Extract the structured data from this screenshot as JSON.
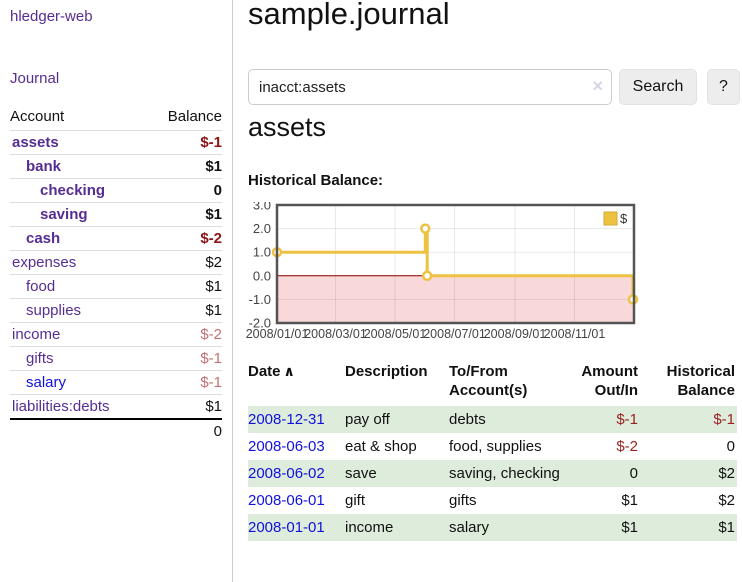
{
  "colors": {
    "accent_purple": "#552d93",
    "link_blue": "#1111dd",
    "negative_strong": "#8f1414",
    "negative_soft": "#c47070",
    "table_negative": "#9b2222",
    "row_stripe_green": "#deecdb",
    "chart_series_yellow": "#edc240",
    "chart_negative_region": "#f8d8d8",
    "chart_zero_line": "#8b0000"
  },
  "sidebar": {
    "app_title": "hledger-web",
    "nav_journal": "Journal",
    "accounts_table": {
      "header_account": "Account",
      "header_balance": "Balance",
      "rows": [
        {
          "name": "assets",
          "balance": "$-1",
          "indent": 1,
          "bold": true,
          "neg": true
        },
        {
          "name": "bank",
          "balance": "$1",
          "indent": 2,
          "bold": true,
          "neg": false
        },
        {
          "name": "checking",
          "balance": "0",
          "indent": 3,
          "bold": true,
          "neg": false
        },
        {
          "name": "saving",
          "balance": "$1",
          "indent": 3,
          "bold": true,
          "neg": false
        },
        {
          "name": "cash",
          "balance": "$-2",
          "indent": 2,
          "bold": true,
          "neg": true
        },
        {
          "name": "expenses",
          "balance": "$2",
          "indent": 1,
          "bold": false,
          "neg": false
        },
        {
          "name": "food",
          "balance": "$1",
          "indent": 2,
          "bold": false,
          "neg": false
        },
        {
          "name": "supplies",
          "balance": "$1",
          "indent": 2,
          "bold": false,
          "neg": false
        },
        {
          "name": "income",
          "balance": "$-2",
          "indent": 1,
          "bold": false,
          "neg": true
        },
        {
          "name": "gifts",
          "balance": "$-1",
          "indent": 2,
          "bold": false,
          "neg": true
        },
        {
          "name": "salary",
          "balance": "$-1",
          "indent": 2,
          "bold": false,
          "neg": true,
          "link_blue": true
        },
        {
          "name": "liabilities:debts",
          "balance": "$1",
          "indent": 1,
          "bold": false,
          "neg": false
        }
      ],
      "total": "0"
    }
  },
  "main": {
    "title": "sample.journal",
    "search": {
      "value": "inacct:assets",
      "clear_icon": "×",
      "button_label": "Search",
      "help_label": "?"
    },
    "account_heading": "assets",
    "chart_label": "Historical Balance:"
  },
  "chart_data": {
    "type": "line",
    "step": true,
    "title": "Historical Balance",
    "series": [
      {
        "name": "$",
        "color": "#edc240",
        "points": [
          [
            "2008-01-01",
            1
          ],
          [
            "2008-06-01",
            2
          ],
          [
            "2008-06-03",
            0
          ],
          [
            "2008-12-31",
            -1
          ]
        ]
      }
    ],
    "x_range": [
      "2008-01-01",
      "2009-01-01"
    ],
    "x_ticks": [
      {
        "date": "2008-01-01",
        "label": "2008/01/01"
      },
      {
        "date": "2008-03-01",
        "label": "2008/03/01"
      },
      {
        "date": "2008-05-01",
        "label": "2008/05/01"
      },
      {
        "date": "2008-07-01",
        "label": "2008/07/01"
      },
      {
        "date": "2008-09-01",
        "label": "2008/09/01"
      },
      {
        "date": "2008-11-01",
        "label": "2008/11/01"
      }
    ],
    "y_ticks": [
      3,
      2,
      1,
      0,
      -1,
      -2
    ],
    "ylim": [
      -2,
      3
    ],
    "grid": true,
    "legend": {
      "label": "$",
      "position": "top-right"
    },
    "negative_region_color": "#f8d8d8",
    "zero_line_color": "#8b0000",
    "border_color": "#545454",
    "tick_label_color": "#444444"
  },
  "register_table": {
    "headers": {
      "date": "Date",
      "sort_icon": "∧",
      "description": "Description",
      "tofrom_line1": "To/From",
      "tofrom_line2": "Account(s)",
      "amount_line1": "Amount",
      "amount_line2": "Out/In",
      "balance_line1": "Historical",
      "balance_line2": "Balance"
    },
    "rows": [
      {
        "date": "2008-12-31",
        "description": "pay off",
        "accounts": "debts",
        "amount": "$-1",
        "balance": "$-1"
      },
      {
        "date": "2008-06-03",
        "description": "eat & shop",
        "accounts": "food, supplies",
        "amount": "$-2",
        "balance": "0"
      },
      {
        "date": "2008-06-02",
        "description": "save",
        "accounts": "saving, checking",
        "amount": "0",
        "balance": "$2"
      },
      {
        "date": "2008-06-01",
        "description": "gift",
        "accounts": "gifts",
        "amount": "$1",
        "balance": "$2"
      },
      {
        "date": "2008-01-01",
        "description": "income",
        "accounts": "salary",
        "amount": "$1",
        "balance": "$1"
      }
    ]
  }
}
